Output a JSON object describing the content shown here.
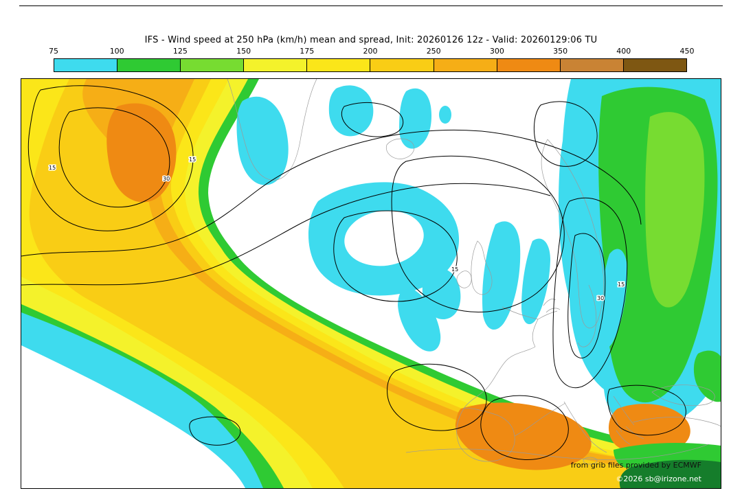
{
  "header": {
    "title": "IFS - Wind speed at 250 hPa (km/h) mean and spread, Init: 20260126 12z - Valid: 20260129:06 TU"
  },
  "colorbar": {
    "ticks": [
      "75",
      "100",
      "125",
      "150",
      "175",
      "200",
      "250",
      "300",
      "350",
      "400",
      "450"
    ],
    "colors": [
      "#3EDBEE",
      "#2FCA33",
      "#77DC31",
      "#F4F22B",
      "#FBE619",
      "#F9CD15",
      "#F6AE16",
      "#EF8A13",
      "#C98334",
      "#7E5712"
    ]
  },
  "contours": {
    "labels": [
      "15",
      "30",
      "15",
      "15",
      "30",
      "15"
    ]
  },
  "attribution": {
    "line1": "from grib files provided by ECMWF",
    "line2": "©2026 sb@irizone.net"
  },
  "chart_data": {
    "type": "heatmap",
    "title": "IFS - Wind speed at 250 hPa (km/h) mean and spread, Init: 20260126 12z - Valid: 20260129:06 TU",
    "model": "IFS",
    "field": "Wind speed at 250 hPa (km/h)",
    "statistics": "ensemble mean shown as color fill, ensemble spread shown as black contours",
    "init": "20260126 12z",
    "valid": "20260129:06 TU",
    "colorbar_ticks": [
      75,
      100,
      125,
      150,
      175,
      200,
      250,
      300,
      350,
      400,
      450
    ],
    "colorbar_colors": [
      "#3EDBEE",
      "#2FCA33",
      "#77DC31",
      "#F4F22B",
      "#FBE619",
      "#F9CD15",
      "#F6AE16",
      "#EF8A13",
      "#C98334",
      "#7E5712"
    ],
    "spread_contour_values": [
      15,
      30
    ],
    "legend_position": "top",
    "attribution": [
      "from grib files provided by ECMWF",
      "©2026 sb@irizone.net"
    ]
  }
}
